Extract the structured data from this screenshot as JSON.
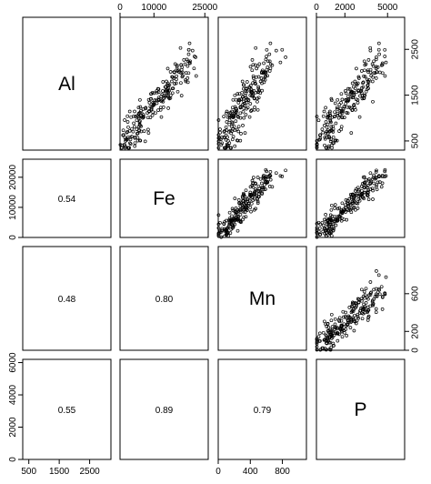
{
  "chart_data": {
    "type": "scatter",
    "variables": [
      "Al",
      "Fe",
      "Mn",
      "P"
    ],
    "ranges": {
      "Al": [
        300,
        3200
      ],
      "Fe": [
        0,
        26000
      ],
      "Mn": [
        0,
        1100
      ],
      "P": [
        0,
        6200
      ]
    },
    "axis_ticks": {
      "Al": [
        500,
        1500,
        2500
      ],
      "Fe": [
        0,
        10000,
        20000
      ],
      "Mn": [
        0,
        400,
        800
      ],
      "P": [
        0,
        2000,
        4000,
        6000
      ]
    },
    "top_axis": {
      "Fe": [
        "0",
        "10000",
        "25000"
      ],
      "Mn": [],
      "P": [
        "0",
        "2000",
        "5000"
      ]
    },
    "top_axis_values": {
      "Fe": [
        0,
        10000,
        25000
      ],
      "P": [
        0,
        2000,
        5000
      ]
    },
    "right_axis": {
      "Al": [
        "500",
        "1500",
        "2500"
      ],
      "Mn": [
        "0",
        "200",
        "600"
      ]
    },
    "right_axis_values": {
      "Al": [
        500,
        1500,
        2500
      ],
      "Mn": [
        0,
        200,
        600
      ]
    },
    "left_axis": {
      "Fe": [
        "0",
        "10000",
        "20000"
      ],
      "P": [
        "0",
        "2000",
        "4000",
        "6000"
      ]
    },
    "bottom_axis": {
      "Al": [
        "500",
        "1500",
        "2500"
      ],
      "Mn": [
        "0",
        "400",
        "800"
      ]
    },
    "correlations": [
      {
        "row": "Fe",
        "col": "Al",
        "value": "0.54"
      },
      {
        "row": "Mn",
        "col": "Al",
        "value": "0.48"
      },
      {
        "row": "Mn",
        "col": "Fe",
        "value": "0.80"
      },
      {
        "row": "P",
        "col": "Al",
        "value": "0.55"
      },
      {
        "row": "P",
        "col": "Fe",
        "value": "0.89"
      },
      {
        "row": "P",
        "col": "Mn",
        "value": "0.79"
      }
    ],
    "n_points": 220,
    "grid": false
  }
}
